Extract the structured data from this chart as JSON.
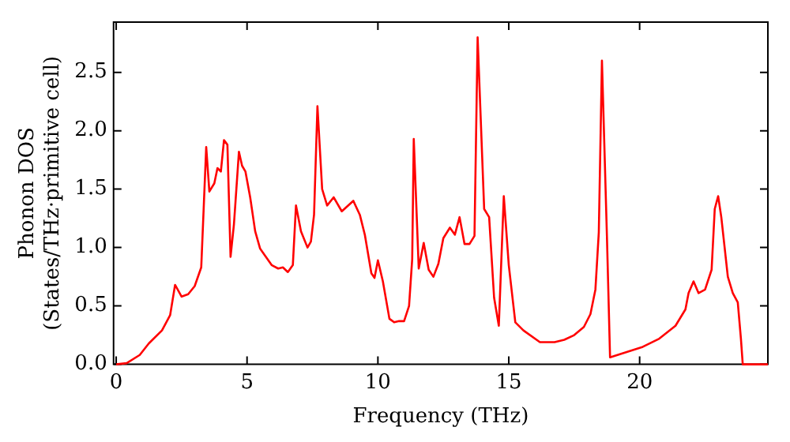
{
  "chart_data": {
    "type": "line",
    "xlabel": "Frequency (THz)",
    "ylabel": "Phonon DOS\n(States/THz·primitive cell)",
    "xlim": [
      -0.1,
      24.9
    ],
    "ylim": [
      0,
      2.93
    ],
    "xticks": [
      0,
      5,
      10,
      15,
      20
    ],
    "yticks": [
      {
        "value": 0,
        "label": "0.0"
      },
      {
        "value": 0.5,
        "label": "0.5"
      },
      {
        "value": 1,
        "label": "1.0"
      },
      {
        "value": 1.5,
        "label": "1.5"
      },
      {
        "value": 2,
        "label": "2.0"
      },
      {
        "value": 2.5,
        "label": "2.5"
      }
    ],
    "grid": false,
    "legend": false,
    "marker": "none",
    "line_style": "solid",
    "series": [
      {
        "color": "#ff0000",
        "x": [
          0,
          0.4,
          0.9,
          1.25,
          1.75,
          2.06,
          2.25,
          2.5,
          2.75,
          3.0,
          3.25,
          3.44,
          3.56,
          3.75,
          3.87,
          4.0,
          4.12,
          4.25,
          4.37,
          4.5,
          4.69,
          4.81,
          4.94,
          5.12,
          5.31,
          5.5,
          5.69,
          5.94,
          6.19,
          6.37,
          6.56,
          6.75,
          6.87,
          7.06,
          7.31,
          7.44,
          7.56,
          7.69,
          7.87,
          8.06,
          8.31,
          8.62,
          9.06,
          9.31,
          9.5,
          9.75,
          9.87,
          10.0,
          10.19,
          10.44,
          10.62,
          10.81,
          11.0,
          11.19,
          11.31,
          11.37,
          11.56,
          11.75,
          11.94,
          12.12,
          12.31,
          12.5,
          12.75,
          12.94,
          13.12,
          13.31,
          13.5,
          13.69,
          13.81,
          14.06,
          14.25,
          14.44,
          14.62,
          14.81,
          15.0,
          15.25,
          15.56,
          16.19,
          16.75,
          17.12,
          17.5,
          17.87,
          18.12,
          18.31,
          18.44,
          18.56,
          18.75,
          18.87,
          20.12,
          20.75,
          21.37,
          21.75,
          21.87,
          22.06,
          22.25,
          22.5,
          22.75,
          22.87,
          23.0,
          23.12,
          23.37,
          23.56,
          23.75,
          23.87,
          23.94,
          24.9
        ],
        "values": [
          0,
          0.01,
          0.08,
          0.18,
          0.29,
          0.42,
          0.68,
          0.58,
          0.6,
          0.67,
          0.83,
          1.86,
          1.48,
          1.55,
          1.68,
          1.65,
          1.92,
          1.88,
          0.92,
          1.2,
          1.82,
          1.7,
          1.65,
          1.43,
          1.14,
          0.99,
          0.93,
          0.85,
          0.82,
          0.83,
          0.79,
          0.85,
          1.36,
          1.14,
          1.0,
          1.05,
          1.28,
          2.21,
          1.5,
          1.36,
          1.43,
          1.31,
          1.4,
          1.28,
          1.11,
          0.78,
          0.74,
          0.89,
          0.71,
          0.39,
          0.36,
          0.37,
          0.37,
          0.5,
          0.9,
          1.93,
          0.82,
          1.04,
          0.81,
          0.75,
          0.86,
          1.08,
          1.17,
          1.11,
          1.26,
          1.03,
          1.03,
          1.1,
          2.8,
          1.33,
          1.26,
          0.57,
          0.33,
          1.44,
          0.85,
          0.36,
          0.29,
          0.19,
          0.19,
          0.21,
          0.25,
          0.32,
          0.43,
          0.64,
          1.13,
          2.6,
          1.1,
          0.06,
          0.15,
          0.22,
          0.33,
          0.47,
          0.61,
          0.71,
          0.61,
          0.64,
          0.81,
          1.33,
          1.44,
          1.26,
          0.75,
          0.61,
          0.53,
          0.22,
          0,
          0
        ]
      }
    ]
  }
}
